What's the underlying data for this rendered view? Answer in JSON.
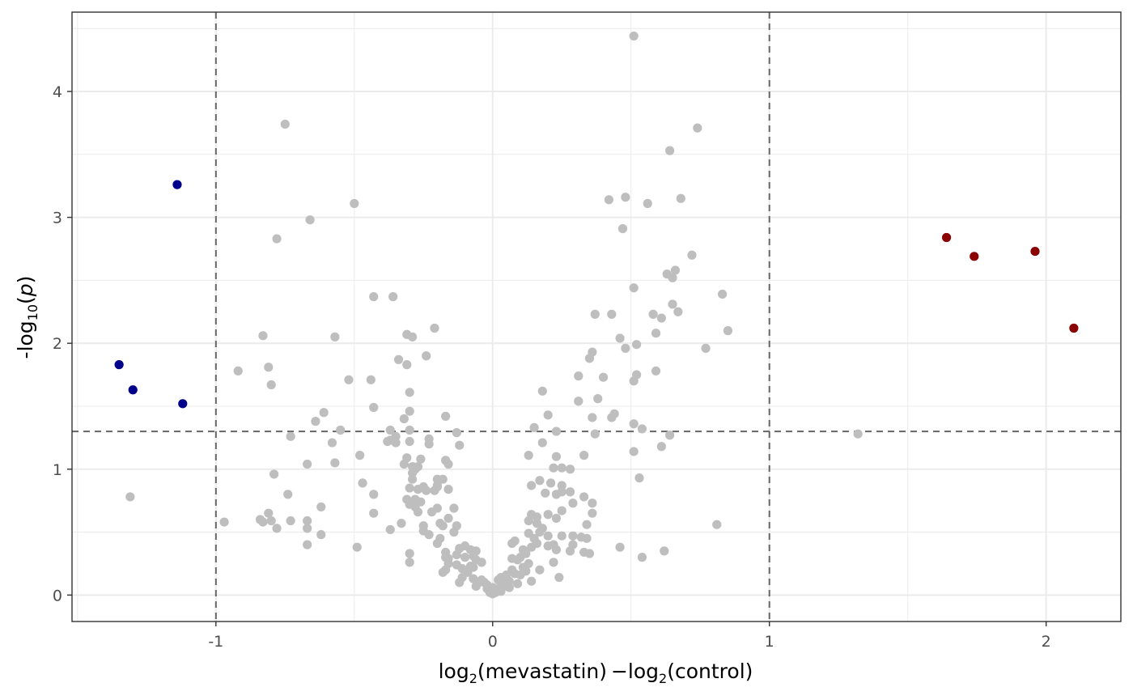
{
  "chart_data": {
    "type": "scatter",
    "title": "",
    "xlabel": {
      "pre": "log",
      "sub1": "2",
      "mid": "(mevastatin) −log",
      "sub2": "2",
      "post": "(control)"
    },
    "ylabel": {
      "pre": "-log",
      "sub": "10",
      "open": "(",
      "var": "p",
      "close": ")"
    },
    "xlim": [
      -1.52,
      2.27
    ],
    "ylim": [
      -0.21,
      4.63
    ],
    "x_ticks": [
      -1,
      0,
      1,
      2
    ],
    "x_tick_labels": [
      "-1",
      "0",
      "1",
      "2"
    ],
    "y_ticks": [
      0,
      1,
      2,
      3,
      4
    ],
    "y_tick_labels": [
      "0",
      "1",
      "2",
      "3",
      "4"
    ],
    "grid": true,
    "thresholds": {
      "x": [
        -1,
        1
      ],
      "y": 1.3
    },
    "colors": {
      "down": "#00008b",
      "up": "#8b0000",
      "ns": "#bebebe",
      "threshold": "#666666",
      "grid": "#ebebeb",
      "border": "#333333"
    },
    "series": [
      {
        "key": "down",
        "points": [
          [
            -1.14,
            3.26
          ],
          [
            -1.35,
            1.83
          ],
          [
            -1.3,
            1.63
          ],
          [
            -1.12,
            1.52
          ]
        ]
      },
      {
        "key": "up",
        "points": [
          [
            1.64,
            2.84
          ],
          [
            1.74,
            2.69
          ],
          [
            1.96,
            2.73
          ],
          [
            2.1,
            2.12
          ]
        ]
      },
      {
        "key": "ns",
        "points": [
          [
            0.51,
            4.44
          ],
          [
            -0.75,
            3.74
          ],
          [
            0.74,
            3.71
          ],
          [
            0.64,
            3.53
          ],
          [
            -0.5,
            3.11
          ],
          [
            0.42,
            3.14
          ],
          [
            0.48,
            3.16
          ],
          [
            0.56,
            3.11
          ],
          [
            0.68,
            3.15
          ],
          [
            -0.66,
            2.98
          ],
          [
            0.47,
            2.91
          ],
          [
            -0.78,
            2.83
          ],
          [
            0.72,
            2.7
          ],
          [
            0.66,
            2.58
          ],
          [
            0.63,
            2.55
          ],
          [
            0.65,
            2.52
          ],
          [
            0.51,
            2.44
          ],
          [
            -0.43,
            2.37
          ],
          [
            -0.36,
            2.37
          ],
          [
            0.83,
            2.39
          ],
          [
            0.65,
            2.31
          ],
          [
            0.67,
            2.25
          ],
          [
            0.37,
            2.23
          ],
          [
            0.43,
            2.23
          ],
          [
            0.58,
            2.23
          ],
          [
            0.61,
            2.2
          ],
          [
            -0.21,
            2.12
          ],
          [
            0.85,
            2.1
          ],
          [
            -0.83,
            2.06
          ],
          [
            -0.31,
            2.07
          ],
          [
            -0.29,
            2.05
          ],
          [
            -0.57,
            2.05
          ],
          [
            0.59,
            2.08
          ],
          [
            0.46,
            2.04
          ],
          [
            0.52,
            1.99
          ],
          [
            0.48,
            1.96
          ],
          [
            0.77,
            1.96
          ],
          [
            0.36,
            1.93
          ],
          [
            -0.24,
            1.9
          ],
          [
            0.35,
            1.88
          ],
          [
            -0.34,
            1.87
          ],
          [
            -0.31,
            1.83
          ],
          [
            -0.81,
            1.81
          ],
          [
            -0.92,
            1.78
          ],
          [
            0.59,
            1.78
          ],
          [
            0.52,
            1.75
          ],
          [
            0.31,
            1.74
          ],
          [
            0.4,
            1.73
          ],
          [
            -0.52,
            1.71
          ],
          [
            -0.44,
            1.71
          ],
          [
            0.51,
            1.7
          ],
          [
            -0.8,
            1.67
          ],
          [
            0.18,
            1.62
          ],
          [
            -0.3,
            1.61
          ],
          [
            0.38,
            1.56
          ],
          [
            0.31,
            1.54
          ],
          [
            -0.43,
            1.49
          ],
          [
            -0.3,
            1.46
          ],
          [
            -0.61,
            1.45
          ],
          [
            0.44,
            1.44
          ],
          [
            0.43,
            1.41
          ],
          [
            0.36,
            1.41
          ],
          [
            -0.17,
            1.42
          ],
          [
            0.2,
            1.43
          ],
          [
            -0.32,
            1.4
          ],
          [
            -0.64,
            1.38
          ],
          [
            0.51,
            1.36
          ],
          [
            0.15,
            1.33
          ],
          [
            0.54,
            1.32
          ],
          [
            -0.55,
            1.31
          ],
          [
            -0.37,
            1.31
          ],
          [
            -0.3,
            1.31
          ],
          [
            0.23,
            1.3
          ],
          [
            -0.13,
            1.29
          ],
          [
            0.37,
            1.28
          ],
          [
            0.64,
            1.27
          ],
          [
            -0.73,
            1.26
          ],
          [
            -0.35,
            1.26
          ],
          [
            -0.23,
            1.24
          ],
          [
            -0.37,
            1.23
          ],
          [
            -0.38,
            1.22
          ],
          [
            -0.3,
            1.22
          ],
          [
            -0.35,
            1.21
          ],
          [
            -0.58,
            1.21
          ],
          [
            0.18,
            1.21
          ],
          [
            -0.23,
            1.2
          ],
          [
            -0.12,
            1.19
          ],
          [
            0.61,
            1.18
          ],
          [
            0.51,
            1.14
          ],
          [
            -0.48,
            1.11
          ],
          [
            0.13,
            1.11
          ],
          [
            0.33,
            1.11
          ],
          [
            0.23,
            1.1
          ],
          [
            -0.17,
            1.07
          ],
          [
            -0.31,
            1.09
          ],
          [
            -0.26,
            1.08
          ],
          [
            -0.16,
            1.04
          ],
          [
            -0.67,
            1.04
          ],
          [
            -0.57,
            1.05
          ],
          [
            -0.32,
            1.04
          ],
          [
            -0.27,
            1.02
          ],
          [
            -0.29,
            1.02
          ],
          [
            -0.28,
            1.0
          ],
          [
            0.22,
            1.01
          ],
          [
            0.25,
            1.01
          ],
          [
            0.28,
            1.0
          ],
          [
            -0.29,
            0.97
          ],
          [
            -0.79,
            0.96
          ],
          [
            0.53,
            0.93
          ],
          [
            -0.29,
            0.92
          ],
          [
            -0.2,
            0.92
          ],
          [
            -0.18,
            0.92
          ],
          [
            0.17,
            0.91
          ],
          [
            0.21,
            0.89
          ],
          [
            -0.47,
            0.89
          ],
          [
            -0.2,
            0.87
          ],
          [
            -0.25,
            0.86
          ],
          [
            -0.2,
            0.86
          ],
          [
            0.14,
            0.87
          ],
          [
            0.25,
            0.87
          ],
          [
            -0.3,
            0.85
          ],
          [
            -0.27,
            0.84
          ],
          [
            -0.24,
            0.83
          ],
          [
            -0.16,
            0.84
          ],
          [
            -0.21,
            0.83
          ],
          [
            0.25,
            0.82
          ],
          [
            0.28,
            0.82
          ],
          [
            0.19,
            0.81
          ],
          [
            -0.74,
            0.8
          ],
          [
            -0.43,
            0.8
          ],
          [
            0.23,
            0.8
          ],
          [
            0.33,
            0.78
          ],
          [
            -0.31,
            0.76
          ],
          [
            -0.28,
            0.76
          ],
          [
            -0.26,
            0.74
          ],
          [
            0.29,
            0.73
          ],
          [
            0.36,
            0.73
          ],
          [
            -0.3,
            0.72
          ],
          [
            -0.28,
            0.7
          ],
          [
            -0.14,
            0.69
          ],
          [
            -0.2,
            0.69
          ],
          [
            0.25,
            0.67
          ],
          [
            -0.27,
            0.66
          ],
          [
            -0.22,
            0.66
          ],
          [
            -0.43,
            0.65
          ],
          [
            -0.81,
            0.65
          ],
          [
            -0.62,
            0.7
          ],
          [
            0.36,
            0.65
          ],
          [
            0.14,
            0.64
          ],
          [
            0.2,
            0.64
          ],
          [
            0.16,
            0.62
          ],
          [
            0.23,
            0.61
          ],
          [
            -0.16,
            0.61
          ],
          [
            -0.84,
            0.6
          ],
          [
            -0.8,
            0.59
          ],
          [
            -0.73,
            0.59
          ],
          [
            -0.67,
            0.59
          ],
          [
            -0.83,
            0.58
          ],
          [
            -0.97,
            0.58
          ],
          [
            0.16,
            0.57
          ],
          [
            -0.33,
            0.57
          ],
          [
            -0.19,
            0.57
          ],
          [
            -0.13,
            0.55
          ],
          [
            -0.25,
            0.55
          ],
          [
            0.81,
            0.56
          ],
          [
            -0.18,
            0.55
          ],
          [
            0.34,
            0.56
          ],
          [
            -0.78,
            0.53
          ],
          [
            -0.67,
            0.53
          ],
          [
            -0.37,
            0.52
          ],
          [
            -0.25,
            0.51
          ],
          [
            -0.14,
            0.5
          ],
          [
            0.17,
            0.5
          ],
          [
            0.13,
            0.49
          ],
          [
            0.2,
            0.47
          ],
          [
            0.25,
            0.47
          ],
          [
            0.29,
            0.47
          ],
          [
            0.32,
            0.46
          ],
          [
            0.34,
            0.45
          ],
          [
            -0.62,
            0.48
          ],
          [
            -0.23,
            0.48
          ],
          [
            -0.19,
            0.45
          ],
          [
            -0.2,
            0.41
          ],
          [
            0.16,
            0.41
          ],
          [
            0.22,
            0.4
          ],
          [
            -0.08,
            0.36
          ],
          [
            0.07,
            0.41
          ],
          [
            0.08,
            0.43
          ],
          [
            0.29,
            0.4
          ],
          [
            -0.1,
            0.39
          ],
          [
            -0.12,
            0.37
          ],
          [
            0.46,
            0.38
          ],
          [
            -0.49,
            0.38
          ],
          [
            -0.67,
            0.4
          ],
          [
            0.62,
            0.35
          ],
          [
            0.23,
            0.36
          ],
          [
            0.28,
            0.35
          ],
          [
            0.33,
            0.34
          ],
          [
            0.35,
            0.33
          ],
          [
            -0.17,
            0.34
          ],
          [
            -0.13,
            0.32
          ],
          [
            -0.3,
            0.33
          ],
          [
            -0.07,
            0.31
          ],
          [
            -0.1,
            0.3
          ],
          [
            0.12,
            0.33
          ],
          [
            0.07,
            0.29
          ],
          [
            0.09,
            0.28
          ],
          [
            -0.06,
            0.28
          ],
          [
            -0.17,
            0.3
          ],
          [
            -0.3,
            0.26
          ],
          [
            0.54,
            0.3
          ],
          [
            -0.16,
            0.25
          ],
          [
            -0.13,
            0.24
          ],
          [
            -0.08,
            0.23
          ],
          [
            0.22,
            0.26
          ],
          [
            -0.07,
            0.22
          ],
          [
            -0.11,
            0.21
          ],
          [
            0.17,
            0.2
          ],
          [
            -0.18,
            0.18
          ],
          [
            -0.17,
            0.2
          ],
          [
            0.12,
            0.19
          ],
          [
            0.07,
            0.2
          ],
          [
            0.08,
            0.17
          ],
          [
            0.1,
            0.16
          ],
          [
            0.05,
            0.16
          ],
          [
            0.03,
            0.14
          ],
          [
            0.24,
            0.14
          ],
          [
            -0.11,
            0.14
          ],
          [
            0.14,
            0.11
          ],
          [
            0.06,
            0.11
          ],
          [
            -0.07,
            0.13
          ],
          [
            0.02,
            0.12
          ],
          [
            -0.12,
            0.1
          ],
          [
            -0.05,
            0.1
          ],
          [
            -0.03,
            0.1
          ],
          [
            0.04,
            0.09
          ],
          [
            -0.02,
            0.08
          ],
          [
            -0.06,
            0.07
          ],
          [
            0.0,
            0.06
          ],
          [
            0.01,
            0.04
          ],
          [
            0.02,
            0.05
          ],
          [
            -0.01,
            0.03
          ],
          [
            -0.02,
            0.05
          ],
          [
            0.03,
            0.03
          ],
          [
            0.0,
            0.01
          ],
          [
            -0.01,
            0.02
          ],
          [
            0.01,
            0.02
          ],
          [
            0.06,
            0.06
          ],
          [
            0.04,
            0.07
          ],
          [
            0.09,
            0.09
          ],
          [
            0.1,
            0.3
          ],
          [
            0.13,
            0.25
          ],
          [
            0.14,
            0.38
          ],
          [
            0.15,
            0.45
          ],
          [
            0.11,
            0.36
          ],
          [
            0.11,
            0.22
          ],
          [
            -0.09,
            0.18
          ],
          [
            -0.04,
            0.26
          ],
          [
            0.13,
            0.59
          ],
          [
            0.18,
            0.53
          ],
          [
            0.2,
            0.39
          ],
          [
            -0.06,
            0.35
          ],
          [
            -0.16,
            0.29
          ],
          [
            -0.04,
            0.12
          ],
          [
            1.32,
            1.28
          ],
          [
            -1.31,
            0.78
          ]
        ]
      }
    ]
  }
}
